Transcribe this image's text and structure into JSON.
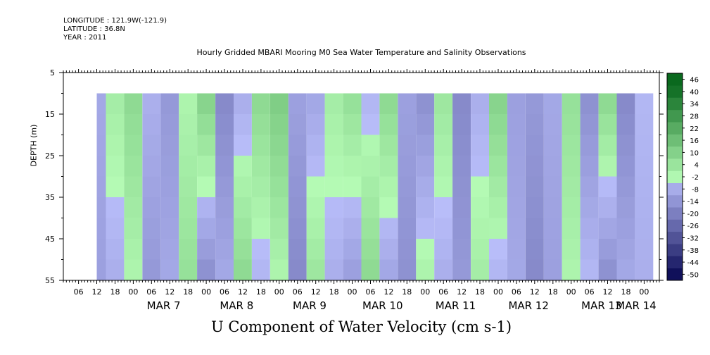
{
  "header": {
    "longitude": "LONGITUDE : 121.9W(-121.9)",
    "latitude": "LATITUDE : 36.8N",
    "year": "YEAR : 2011"
  },
  "chart_data": {
    "type": "heatmap",
    "title": "Hourly Gridded MBARI Mooring M0 Sea Water Temperature and Salinity Observations",
    "xlabel": "U Component of Water Velocity (cm s-1)",
    "ylabel": "DEPTH (m)",
    "ylim": [
      5,
      55
    ],
    "y_inverted": true,
    "y_ticks": [
      5,
      15,
      25,
      35,
      45,
      55
    ],
    "x_start": "2011-03-06T01:00",
    "x_end": "2011-03-14T05:00",
    "data_x_range": [
      "2011-03-06T12:00",
      "2011-03-14T03:00"
    ],
    "data_depth_range": [
      10,
      55
    ],
    "x_hour_ticks": [
      "06",
      "12",
      "18",
      "00",
      "06",
      "12",
      "18",
      "00",
      "06",
      "12",
      "18",
      "00",
      "06",
      "12",
      "18",
      "00",
      "06",
      "12",
      "18",
      "00",
      "06",
      "12",
      "18",
      "00",
      "06",
      "12",
      "18",
      "00",
      "06",
      "12",
      "18",
      "00"
    ],
    "x_day_labels": [
      "MAR  7",
      "MAR  8",
      "MAR  9",
      "MAR 10",
      "MAR 11",
      "MAR 12",
      "MAR 13",
      "MAR 14"
    ],
    "colorbar_levels": [
      -50,
      -44,
      -38,
      -32,
      -26,
      -20,
      -14,
      -8,
      -2,
      4,
      10,
      16,
      22,
      28,
      34,
      40,
      46
    ],
    "colorbar_labels": [
      "46",
      "40",
      "34",
      "28",
      "22",
      "16",
      "10",
      "4",
      "-2",
      "-8",
      "-14",
      "-20",
      "-26",
      "-32",
      "-38",
      "-44",
      "-50"
    ],
    "velocity_profile": {
      "x_days": [
        6.5,
        6.75,
        7.0,
        7.25,
        7.5,
        7.75,
        8.0,
        8.25,
        8.5,
        8.75,
        9.0,
        9.25,
        9.5,
        9.75,
        10.0,
        10.25,
        10.5,
        10.75,
        11.0,
        11.25,
        11.5,
        11.75,
        12.0,
        12.25,
        12.5,
        12.75,
        13.0,
        13.25,
        13.5,
        13.75,
        14.0
      ],
      "surface_values": [
        -6,
        4,
        10,
        -4,
        -10,
        2,
        12,
        -14,
        -4,
        10,
        14,
        -8,
        -6,
        4,
        8,
        -2,
        10,
        -8,
        -12,
        6,
        -14,
        -4,
        12,
        -8,
        -10,
        -6,
        8,
        -12,
        10,
        -14,
        -2
      ],
      "bottom_values": [
        -8,
        -4,
        2,
        -10,
        -6,
        8,
        -12,
        -6,
        10,
        -2,
        2,
        -14,
        6,
        -4,
        -8,
        10,
        -6,
        -12,
        2,
        -4,
        -10,
        4,
        -2,
        -6,
        -14,
        -8,
        2,
        -2,
        -12,
        -6,
        -4
      ]
    }
  }
}
